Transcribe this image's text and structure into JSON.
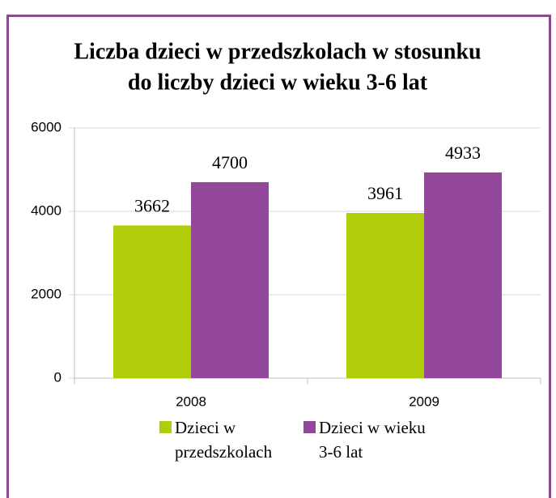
{
  "chart_data": {
    "type": "bar",
    "title": [
      "Liczba dzieci w przedszkolach w stosunku",
      "do liczby dzieci w wieku 3-6 lat"
    ],
    "categories": [
      "2008",
      "2009"
    ],
    "series": [
      {
        "name": "Dzieci w przedszkolach",
        "color": "#b1cc08",
        "values": [
          3662,
          3961
        ]
      },
      {
        "name": "Dzieci w wieku 3-6 lat",
        "color": "#93479a",
        "values": [
          4700,
          4933
        ]
      }
    ],
    "ylim": [
      0,
      6000
    ],
    "yticks": [
      0,
      2000,
      4000,
      6000
    ],
    "grid": true
  }
}
